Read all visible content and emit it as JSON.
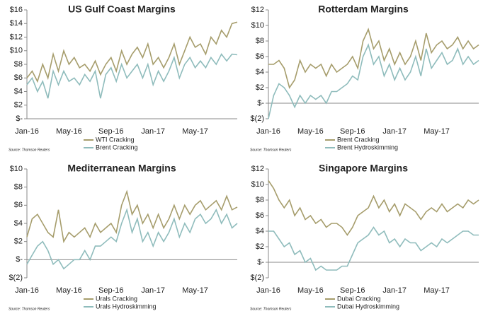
{
  "chart_data": [
    {
      "type": "line",
      "title": "US Gulf Coast Margins",
      "source": "Source: Thomson Reuters",
      "categories": [
        "Jan-16",
        null,
        null,
        null,
        null,
        null,
        null,
        null,
        "May-16",
        null,
        null,
        null,
        null,
        null,
        null,
        null,
        "Sep-16",
        null,
        null,
        null,
        null,
        null,
        null,
        null,
        "Jan-17",
        null,
        null,
        null,
        null,
        null,
        null,
        null,
        "May-17",
        null,
        null,
        null,
        null,
        null,
        null,
        null,
        null
      ],
      "ylim": [
        0,
        16
      ],
      "yticks": [
        {
          "value": 0,
          "label": "$-"
        },
        {
          "value": 2,
          "label": "$2"
        },
        {
          "value": 4,
          "label": "$4"
        },
        {
          "value": 6,
          "label": "$6"
        },
        {
          "value": 8,
          "label": "$8"
        },
        {
          "value": 10,
          "label": "$10"
        },
        {
          "value": 12,
          "label": "$12"
        },
        {
          "value": 14,
          "label": "$14"
        },
        {
          "value": 16,
          "label": "$16"
        }
      ],
      "series": [
        {
          "name": "WTI Cracking",
          "color": "#a69d6c",
          "values": [
            6,
            7,
            5.5,
            8,
            6,
            9.5,
            7,
            10,
            8,
            9,
            7.5,
            8,
            7,
            8.5,
            6.5,
            8,
            9,
            7,
            10,
            8,
            9.5,
            10.5,
            9,
            11,
            8,
            9,
            7.5,
            9,
            11,
            8,
            10,
            12,
            10.5,
            11,
            9.5,
            12,
            11,
            13,
            12,
            14,
            14.2
          ]
        },
        {
          "name": "Brent Cracking",
          "color": "#8fbcbc",
          "values": [
            5,
            6,
            4,
            5.5,
            3,
            7,
            5,
            7,
            5.5,
            6,
            5,
            6.5,
            5.5,
            7,
            3,
            6.5,
            7.5,
            5.5,
            8,
            6,
            7,
            8,
            6,
            8,
            5,
            7,
            5.5,
            7,
            9,
            6,
            8,
            9,
            7.5,
            8.5,
            7.5,
            9,
            8,
            9.5,
            8.5,
            9.5,
            9.4
          ]
        }
      ]
    },
    {
      "type": "line",
      "title": "Rotterdam Margins",
      "source": "Source: Thomson Reuters",
      "categories": [
        "Jan-16",
        null,
        null,
        null,
        null,
        null,
        null,
        null,
        "May-16",
        null,
        null,
        null,
        null,
        null,
        null,
        null,
        "Sep-16",
        null,
        null,
        null,
        null,
        null,
        null,
        null,
        "Jan-17",
        null,
        null,
        null,
        null,
        null,
        null,
        null,
        "May-17",
        null,
        null,
        null,
        null,
        null,
        null,
        null,
        null
      ],
      "ylim": [
        -2,
        12
      ],
      "yticks": [
        {
          "value": -2,
          "label": "$(2)"
        },
        {
          "value": 0,
          "label": "$-"
        },
        {
          "value": 2,
          "label": "$2"
        },
        {
          "value": 4,
          "label": "$4"
        },
        {
          "value": 6,
          "label": "$6"
        },
        {
          "value": 8,
          "label": "$8"
        },
        {
          "value": 10,
          "label": "$10"
        },
        {
          "value": 12,
          "label": "$12"
        }
      ],
      "series": [
        {
          "name": "Brent Cracking",
          "color": "#a69d6c",
          "values": [
            5,
            5,
            5.5,
            4.5,
            2,
            3,
            5.5,
            4,
            5,
            4.5,
            5,
            3.5,
            5,
            4,
            4.5,
            5,
            6,
            4.5,
            8,
            9.5,
            7,
            8,
            5.5,
            7,
            5,
            6.5,
            5,
            6,
            8,
            5.5,
            9,
            6.5,
            7.5,
            8,
            7,
            7.5,
            8.5,
            7,
            8,
            7,
            7.5
          ]
        },
        {
          "name": "Brent Hydroskimming",
          "color": "#8fbcbc",
          "values": [
            -2,
            1,
            2.5,
            2,
            1,
            -0.5,
            1,
            0,
            1,
            0.5,
            1,
            0,
            1.5,
            1.5,
            2,
            2.5,
            3.5,
            3,
            6,
            7.5,
            5,
            6,
            3.5,
            5,
            3,
            4.5,
            3,
            4,
            6,
            3.5,
            7,
            4.5,
            5.5,
            6.5,
            5,
            5.5,
            7,
            5,
            6,
            5,
            5.5
          ]
        }
      ]
    },
    {
      "type": "line",
      "title": "Mediterranean Margins",
      "source": "Source: Thomson Reuters",
      "categories": [
        "Jan-16",
        null,
        null,
        null,
        null,
        null,
        null,
        null,
        "May-16",
        null,
        null,
        null,
        null,
        null,
        null,
        null,
        "Sep-16",
        null,
        null,
        null,
        null,
        null,
        null,
        null,
        "Jan-17",
        null,
        null,
        null,
        null,
        null,
        null,
        null,
        "May-17",
        null,
        null,
        null,
        null,
        null,
        null,
        null,
        null
      ],
      "ylim": [
        -2,
        10
      ],
      "yticks": [
        {
          "value": -2,
          "label": "$(2)"
        },
        {
          "value": 0,
          "label": "$-"
        },
        {
          "value": 2,
          "label": "$2"
        },
        {
          "value": 4,
          "label": "$4"
        },
        {
          "value": 6,
          "label": "$6"
        },
        {
          "value": 8,
          "label": "$8"
        },
        {
          "value": 10,
          "label": "$10"
        }
      ],
      "series": [
        {
          "name": "Urals Cracking",
          "color": "#a69d6c",
          "values": [
            2.5,
            4.5,
            5,
            4,
            3,
            2.5,
            5.5,
            2,
            3,
            2.5,
            3,
            3.5,
            2.5,
            4,
            3,
            3.5,
            4,
            3,
            6,
            7.5,
            5,
            6,
            4,
            5,
            3.5,
            5,
            3.5,
            4.5,
            6,
            4.5,
            6,
            5,
            6,
            6.5,
            5.5,
            6,
            6.5,
            5.5,
            7,
            5.5,
            5.8
          ]
        },
        {
          "name": "Urals Hydroskimming",
          "color": "#8fbcbc",
          "values": [
            -0.5,
            0.5,
            1.5,
            2,
            1,
            -0.5,
            0,
            -1,
            -0.5,
            0,
            0,
            1,
            0,
            1.5,
            1.5,
            2,
            2.5,
            2,
            4,
            5.5,
            3,
            4.5,
            2,
            3,
            1.5,
            3,
            2,
            3,
            4.5,
            2.5,
            4,
            3,
            4.5,
            5,
            4,
            4.5,
            5.5,
            4,
            5,
            3.5,
            4
          ]
        }
      ]
    },
    {
      "type": "line",
      "title": "Singapore Margins",
      "source": "Source: Thomson Reuters",
      "categories": [
        "Jan-16",
        null,
        null,
        null,
        null,
        null,
        null,
        null,
        "May-16",
        null,
        null,
        null,
        null,
        null,
        null,
        null,
        "Sep-16",
        null,
        null,
        null,
        null,
        null,
        null,
        null,
        "Jan-17",
        null,
        null,
        null,
        null,
        null,
        null,
        null,
        "May-17",
        null,
        null,
        null,
        null,
        null,
        null,
        null,
        null
      ],
      "ylim": [
        -2,
        12
      ],
      "yticks": [
        {
          "value": -2,
          "label": "$(2)"
        },
        {
          "value": 0,
          "label": "$-"
        },
        {
          "value": 2,
          "label": "$2"
        },
        {
          "value": 4,
          "label": "$4"
        },
        {
          "value": 6,
          "label": "$6"
        },
        {
          "value": 8,
          "label": "$8"
        },
        {
          "value": 10,
          "label": "$10"
        },
        {
          "value": 12,
          "label": "$12"
        }
      ],
      "series": [
        {
          "name": "Dubai Cracking",
          "color": "#a69d6c",
          "values": [
            10.5,
            9.5,
            8,
            7,
            8,
            6,
            7,
            5.5,
            6,
            5,
            5.5,
            4.5,
            5,
            5,
            4.5,
            3.5,
            4.5,
            6,
            6.5,
            7,
            8.5,
            7,
            8,
            6.5,
            7.5,
            6,
            7.5,
            7,
            6.5,
            5.5,
            6.5,
            7,
            6.5,
            7.5,
            6.5,
            7,
            7.5,
            7,
            8,
            7.5,
            8
          ]
        },
        {
          "name": "Dubai Hydroskimming",
          "color": "#8fbcbc",
          "values": [
            4,
            4,
            3,
            2,
            2.5,
            1,
            1.5,
            0,
            0.5,
            -1,
            -0.5,
            -1,
            -1,
            -1,
            -0.5,
            -0.5,
            1,
            2.5,
            3,
            3.5,
            4.5,
            3.5,
            4,
            2.5,
            3,
            2,
            3,
            2.5,
            2.5,
            1.5,
            2,
            2.5,
            2,
            3,
            2.5,
            3,
            3.5,
            4,
            4,
            3.5,
            3.5
          ]
        }
      ]
    }
  ]
}
